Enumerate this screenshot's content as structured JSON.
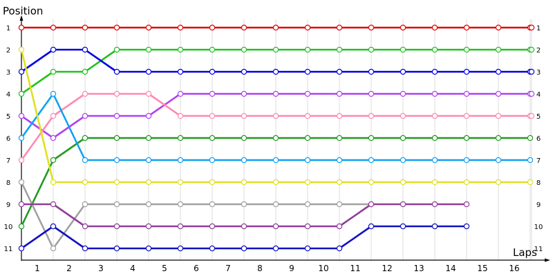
{
  "chart_data": {
    "type": "line",
    "ylabel": "Position",
    "xlabel": "Laps",
    "x_ticks": [
      1,
      2,
      3,
      4,
      5,
      6,
      7,
      8,
      9,
      10,
      11,
      12,
      13,
      14,
      15,
      16
    ],
    "y_ticks": [
      1,
      2,
      3,
      4,
      5,
      6,
      7,
      8,
      9,
      10,
      11
    ],
    "y_inverted": true,
    "grid": true,
    "series": [
      {
        "color": "#e00000",
        "values": [
          1,
          1,
          1,
          1,
          1,
          1,
          1,
          1,
          1,
          1,
          1,
          1,
          1,
          1,
          1,
          1,
          1,
          1
        ],
        "end_label": "1"
      },
      {
        "color": "#1fc21f",
        "values": [
          4,
          3,
          3,
          2,
          2,
          2,
          2,
          2,
          2,
          2,
          2,
          2,
          2,
          2,
          2,
          2,
          2,
          2
        ],
        "end_label": "2"
      },
      {
        "color": "#0000e0",
        "values": [
          3,
          2,
          2,
          3,
          3,
          3,
          3,
          3,
          3,
          3,
          3,
          3,
          3,
          3,
          3,
          3,
          3,
          3
        ],
        "end_label": "3"
      },
      {
        "color": "#b040f0",
        "values": [
          5,
          6,
          5,
          5,
          5,
          4,
          4,
          4,
          4,
          4,
          4,
          4,
          4,
          4,
          4,
          4,
          4,
          4
        ],
        "end_label": "4"
      },
      {
        "color": "#ff88b0",
        "values": [
          7,
          5,
          4,
          4,
          4,
          5,
          5,
          5,
          5,
          5,
          5,
          5,
          5,
          5,
          5,
          5,
          5,
          5
        ],
        "end_label": "5"
      },
      {
        "color": "#209a20",
        "values": [
          10,
          7,
          6,
          6,
          6,
          6,
          6,
          6,
          6,
          6,
          6,
          6,
          6,
          6,
          6,
          6,
          6
        ],
        "end_label": "6"
      },
      {
        "color": "#10a0f0",
        "values": [
          6,
          4,
          7,
          7,
          7,
          7,
          7,
          7,
          7,
          7,
          7,
          7,
          7,
          7,
          7,
          7,
          7
        ],
        "end_label": "7"
      },
      {
        "color": "#e0e020",
        "values": [
          2,
          8,
          8,
          8,
          8,
          8,
          8,
          8,
          8,
          8,
          8,
          8,
          8,
          8,
          8,
          8,
          8
        ],
        "end_label": "8"
      },
      {
        "color": "#a0a0a0",
        "values": [
          8,
          11,
          9,
          9,
          9,
          9,
          9,
          9,
          9,
          9,
          9,
          9
        ],
        "end_label": ""
      },
      {
        "color": "#903c9a",
        "values": [
          9,
          9,
          10,
          10,
          10,
          10,
          10,
          10,
          10,
          10,
          10,
          9,
          9,
          9,
          9
        ],
        "end_label": "9"
      },
      {
        "color": "#1010c0",
        "values": [
          11,
          10,
          11,
          11,
          11,
          11,
          11,
          11,
          11,
          11,
          11,
          10,
          10,
          10,
          10
        ],
        "end_label": "10"
      }
    ],
    "right_axis_extra_label": "11"
  }
}
